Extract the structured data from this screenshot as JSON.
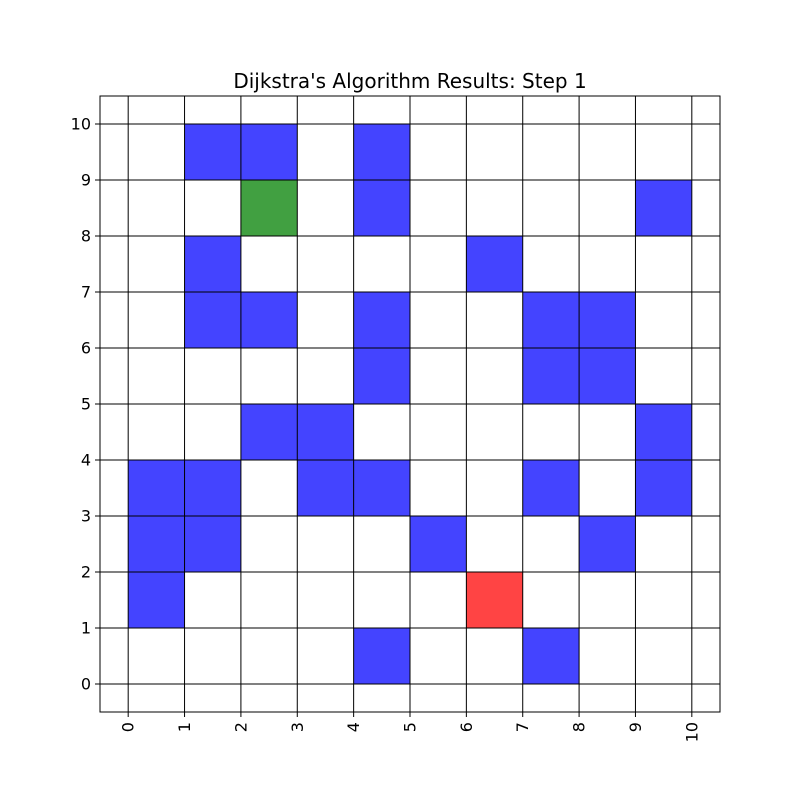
{
  "chart_data": {
    "type": "heatmap",
    "title": "Dijkstra's Algorithm Results: Step 1",
    "xlabel": "",
    "ylabel": "",
    "xlim": [
      -0.5,
      10.5
    ],
    "ylim": [
      -0.5,
      10.5
    ],
    "x_ticks": [
      "0",
      "1",
      "2",
      "3",
      "4",
      "5",
      "6",
      "7",
      "8",
      "9",
      "10"
    ],
    "y_ticks": [
      "0",
      "1",
      "2",
      "3",
      "4",
      "5",
      "6",
      "7",
      "8",
      "9",
      "10"
    ],
    "x_tick_rotation": 90,
    "grid": true,
    "legend": "none",
    "colors": {
      "obstacle": "#4444ff",
      "start": "#41a041",
      "goal": "#ff4444",
      "empty": "#ffffff",
      "grid": "#000000"
    },
    "cells": [
      {
        "x": 1,
        "y": 9,
        "type": "obstacle"
      },
      {
        "x": 2,
        "y": 9,
        "type": "obstacle"
      },
      {
        "x": 4,
        "y": 9,
        "type": "obstacle"
      },
      {
        "x": 2,
        "y": 8,
        "type": "start"
      },
      {
        "x": 4,
        "y": 8,
        "type": "obstacle"
      },
      {
        "x": 9,
        "y": 8,
        "type": "obstacle"
      },
      {
        "x": 1,
        "y": 7,
        "type": "obstacle"
      },
      {
        "x": 6,
        "y": 7,
        "type": "obstacle"
      },
      {
        "x": 1,
        "y": 6,
        "type": "obstacle"
      },
      {
        "x": 2,
        "y": 6,
        "type": "obstacle"
      },
      {
        "x": 4,
        "y": 6,
        "type": "obstacle"
      },
      {
        "x": 7,
        "y": 6,
        "type": "obstacle"
      },
      {
        "x": 8,
        "y": 6,
        "type": "obstacle"
      },
      {
        "x": 4,
        "y": 5,
        "type": "obstacle"
      },
      {
        "x": 7,
        "y": 5,
        "type": "obstacle"
      },
      {
        "x": 8,
        "y": 5,
        "type": "obstacle"
      },
      {
        "x": 2,
        "y": 4,
        "type": "obstacle"
      },
      {
        "x": 3,
        "y": 4,
        "type": "obstacle"
      },
      {
        "x": 9,
        "y": 4,
        "type": "obstacle"
      },
      {
        "x": 0,
        "y": 3,
        "type": "obstacle"
      },
      {
        "x": 1,
        "y": 3,
        "type": "obstacle"
      },
      {
        "x": 3,
        "y": 3,
        "type": "obstacle"
      },
      {
        "x": 4,
        "y": 3,
        "type": "obstacle"
      },
      {
        "x": 7,
        "y": 3,
        "type": "obstacle"
      },
      {
        "x": 9,
        "y": 3,
        "type": "obstacle"
      },
      {
        "x": 0,
        "y": 2,
        "type": "obstacle"
      },
      {
        "x": 1,
        "y": 2,
        "type": "obstacle"
      },
      {
        "x": 5,
        "y": 2,
        "type": "obstacle"
      },
      {
        "x": 8,
        "y": 2,
        "type": "obstacle"
      },
      {
        "x": 0,
        "y": 1,
        "type": "obstacle"
      },
      {
        "x": 6,
        "y": 1,
        "type": "goal"
      },
      {
        "x": 4,
        "y": 0,
        "type": "obstacle"
      },
      {
        "x": 7,
        "y": 0,
        "type": "obstacle"
      }
    ]
  }
}
